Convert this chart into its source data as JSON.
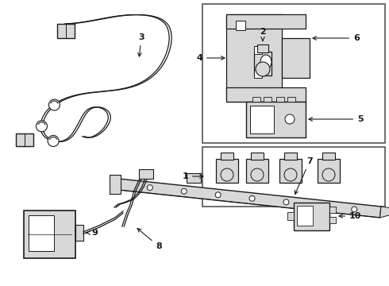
{
  "bg_color": "#ffffff",
  "line_color": "#1a1a1a",
  "gray_fill": "#d8d8d8",
  "dark_gray": "#555555",
  "fig_width": 4.9,
  "fig_height": 3.6,
  "dpi": 100
}
